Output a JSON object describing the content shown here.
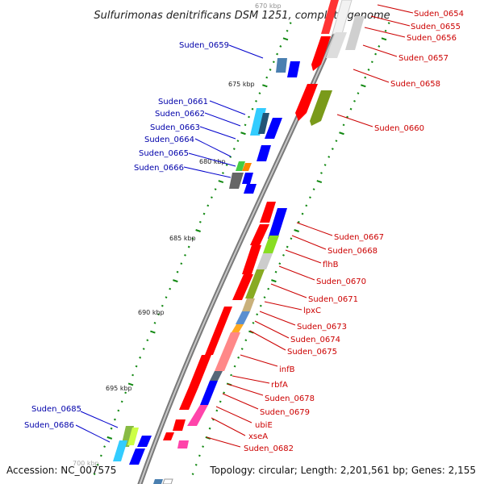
{
  "title": "Sulfurimonas denitrificans DSM 1251, complete genome",
  "footer": {
    "accession": "Accession: NC_007575",
    "topology": "Topology: circular; Length: 2,201,561 bp; Genes: 2,155"
  },
  "colors": {
    "forward_label": "#cc0000",
    "reverse_label": "#0000aa",
    "backbone": "#888888",
    "tick": "#118811"
  },
  "kbp_labels": [
    "670 kbp",
    "675 kbp",
    "680 kbp",
    "685 kbp",
    "690 kbp",
    "695 kbp",
    "700 kbp"
  ],
  "genes_forward_strand": [
    "Suden_0654",
    "Suden_0655",
    "Suden_0656",
    "Suden_0657",
    "Suden_0658",
    "Suden_0660",
    "Suden_0667",
    "Suden_0668",
    "flhB",
    "Suden_0670",
    "Suden_0671",
    "lpxC",
    "Suden_0673",
    "Suden_0674",
    "Suden_0675",
    "infB",
    "rbfA",
    "Suden_0678",
    "Suden_0679",
    "ubiE",
    "xseA",
    "Suden_0682"
  ],
  "genes_reverse_strand": [
    "Suden_0659",
    "Suden_0661",
    "Suden_0662",
    "Suden_0663",
    "Suden_0664",
    "Suden_0665",
    "Suden_0666",
    "Suden_0685",
    "Suden_0686"
  ]
}
